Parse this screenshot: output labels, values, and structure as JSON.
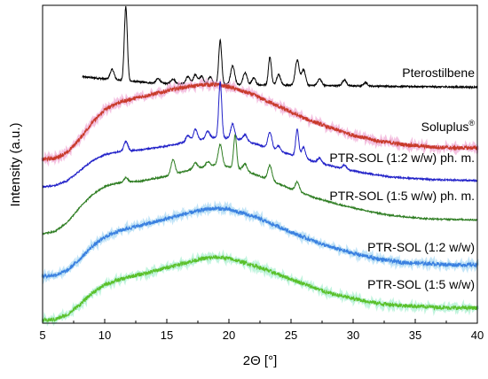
{
  "chart_data": {
    "type": "line",
    "xlabel": "2Θ [°]",
    "ylabel": "Intensity (a.u.)",
    "xlim": [
      5,
      40
    ],
    "x_ticks": [
      "5",
      "10",
      "15",
      "20",
      "25",
      "30",
      "35",
      "40"
    ],
    "y_ticks_labeled": false,
    "grid": false,
    "legend": "inline labels at right",
    "series": [
      {
        "name": "Pterostilbene",
        "color": "#000000",
        "kind": "crystalline",
        "baseline": [
          [
            8,
            0.9
          ],
          [
            14,
            0.4
          ],
          [
            20,
            0.3
          ],
          [
            30,
            0.2
          ],
          [
            40,
            0.1
          ]
        ],
        "peaks": [
          [
            10.6,
            0.75
          ],
          [
            11.7,
            5.55
          ],
          [
            14.3,
            0.35
          ],
          [
            15.5,
            0.35
          ],
          [
            16.7,
            0.55
          ],
          [
            17.3,
            0.7
          ],
          [
            17.8,
            0.6
          ],
          [
            18.5,
            0.55
          ],
          [
            19.3,
            3.3
          ],
          [
            20.3,
            1.4
          ],
          [
            21.3,
            0.9
          ],
          [
            22.0,
            0.5
          ],
          [
            23.3,
            2.1
          ],
          [
            24.0,
            0.8
          ],
          [
            25.5,
            1.9
          ],
          [
            26.0,
            1.2
          ],
          [
            27.3,
            0.5
          ],
          [
            29.3,
            0.45
          ],
          [
            31.0,
            0.25
          ]
        ]
      },
      {
        "name": "Soluplus®",
        "color": "#c83a2a",
        "halo_color": "#f0a8d4",
        "kind": "amorphous",
        "baseline": [
          [
            5,
            0.0
          ],
          [
            6,
            0.1
          ],
          [
            7,
            0.6
          ],
          [
            8,
            1.8
          ],
          [
            9,
            3.2
          ],
          [
            10,
            4.3
          ],
          [
            11,
            4.9
          ],
          [
            12,
            5.2
          ],
          [
            14,
            5.7
          ],
          [
            16,
            6.2
          ],
          [
            18,
            6.5
          ],
          [
            19,
            6.5
          ],
          [
            20,
            6.3
          ],
          [
            22,
            5.6
          ],
          [
            24,
            4.6
          ],
          [
            26,
            3.6
          ],
          [
            28,
            2.8
          ],
          [
            30,
            2.1
          ],
          [
            32,
            1.6
          ],
          [
            34,
            1.3
          ],
          [
            36,
            1.1
          ],
          [
            38,
            1.0
          ],
          [
            40,
            1.0
          ]
        ],
        "peaks": []
      },
      {
        "name": "PTR-SOL (1:2 w/w) ph. m.",
        "color": "#2020c8",
        "kind": "crystalline",
        "baseline": [
          [
            5,
            0.0
          ],
          [
            6,
            0.1
          ],
          [
            7,
            0.5
          ],
          [
            8,
            1.3
          ],
          [
            9,
            2.1
          ],
          [
            10,
            2.6
          ],
          [
            11,
            2.8
          ],
          [
            13,
            3.0
          ],
          [
            15,
            3.3
          ],
          [
            17,
            3.7
          ],
          [
            19,
            4.0
          ],
          [
            21,
            3.8
          ],
          [
            23,
            3.2
          ],
          [
            25,
            2.6
          ],
          [
            27,
            2.0
          ],
          [
            29,
            1.5
          ],
          [
            31,
            1.1
          ],
          [
            33,
            0.8
          ],
          [
            36,
            0.6
          ],
          [
            40,
            0.5
          ]
        ],
        "peaks": [
          [
            11.7,
            0.8
          ],
          [
            16.7,
            0.5
          ],
          [
            17.3,
            0.9
          ],
          [
            18.3,
            0.6
          ],
          [
            19.3,
            4.5
          ],
          [
            20.3,
            1.2
          ],
          [
            21.3,
            0.5
          ],
          [
            23.3,
            1.3
          ],
          [
            24.0,
            0.4
          ],
          [
            25.5,
            2.2
          ],
          [
            26.0,
            0.9
          ],
          [
            27.3,
            0.4
          ],
          [
            29.3,
            0.3
          ]
        ]
      },
      {
        "name": "PTR-SOL (1:5 w/w) ph. m.",
        "color": "#2e7d22",
        "kind": "crystalline",
        "baseline": [
          [
            5,
            0.0
          ],
          [
            6,
            0.2
          ],
          [
            7,
            1.0
          ],
          [
            8,
            2.3
          ],
          [
            9,
            3.4
          ],
          [
            10,
            4.1
          ],
          [
            11,
            4.4
          ],
          [
            13,
            4.6
          ],
          [
            15,
            5.0
          ],
          [
            17,
            5.6
          ],
          [
            19,
            6.0
          ],
          [
            21,
            5.6
          ],
          [
            23,
            4.8
          ],
          [
            25,
            3.9
          ],
          [
            27,
            3.1
          ],
          [
            29,
            2.5
          ],
          [
            31,
            2.0
          ],
          [
            33,
            1.6
          ],
          [
            36,
            1.3
          ],
          [
            40,
            1.2
          ]
        ],
        "peaks": [
          [
            11.7,
            0.4
          ],
          [
            15.5,
            1.3
          ],
          [
            17.3,
            0.5
          ],
          [
            18.3,
            0.4
          ],
          [
            19.3,
            1.8
          ],
          [
            20.5,
            2.9
          ],
          [
            21.3,
            0.6
          ],
          [
            23.3,
            1.3
          ],
          [
            25.5,
            0.8
          ]
        ]
      },
      {
        "name": "PTR-SOL (1:2 w/w)",
        "color": "#3a80e0",
        "halo_color": "#a8d8f4",
        "kind": "amorphous",
        "baseline": [
          [
            5,
            0.0
          ],
          [
            6,
            0.1
          ],
          [
            7,
            0.5
          ],
          [
            8,
            1.5
          ],
          [
            9,
            2.6
          ],
          [
            10,
            3.4
          ],
          [
            11,
            3.9
          ],
          [
            12,
            4.2
          ],
          [
            14,
            4.7
          ],
          [
            16,
            5.3
          ],
          [
            18,
            5.8
          ],
          [
            19,
            5.9
          ],
          [
            20,
            5.8
          ],
          [
            22,
            5.2
          ],
          [
            24,
            4.3
          ],
          [
            26,
            3.4
          ],
          [
            28,
            2.6
          ],
          [
            30,
            2.0
          ],
          [
            32,
            1.5
          ],
          [
            34,
            1.2
          ],
          [
            36,
            1.1
          ],
          [
            38,
            1.0
          ],
          [
            40,
            1.0
          ]
        ],
        "peaks": []
      },
      {
        "name": "PTR-SOL (1:5 w/w)",
        "color": "#5ac02a",
        "halo_color": "#a8f0d0",
        "kind": "amorphous",
        "baseline": [
          [
            5,
            0.0
          ],
          [
            6,
            0.1
          ],
          [
            7,
            0.5
          ],
          [
            8,
            1.4
          ],
          [
            9,
            2.4
          ],
          [
            10,
            3.1
          ],
          [
            11,
            3.5
          ],
          [
            12,
            3.8
          ],
          [
            14,
            4.3
          ],
          [
            16,
            4.9
          ],
          [
            18,
            5.4
          ],
          [
            19,
            5.5
          ],
          [
            20,
            5.4
          ],
          [
            22,
            4.8
          ],
          [
            24,
            4.0
          ],
          [
            26,
            3.2
          ],
          [
            28,
            2.4
          ],
          [
            30,
            1.9
          ],
          [
            32,
            1.5
          ],
          [
            34,
            1.3
          ],
          [
            36,
            1.2
          ],
          [
            38,
            1.1
          ],
          [
            40,
            1.1
          ]
        ],
        "peaks": []
      }
    ]
  }
}
